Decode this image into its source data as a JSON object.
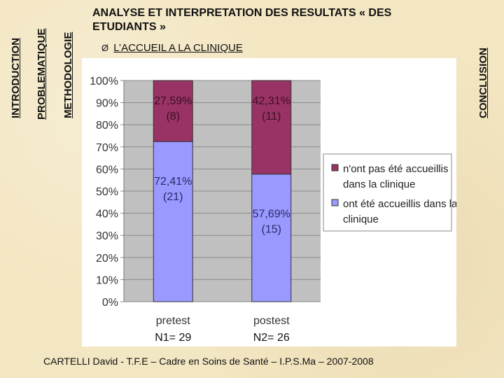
{
  "side_tabs": {
    "introduction": "INTRODUCTION",
    "problematique": "PROBLEMATIQUE",
    "methodologie": "METHODOLOGIE",
    "conclusion": "CONCLUSION"
  },
  "title": "ANALYSE ET INTERPRETATION DES RESULTATS « DES ETUDIANTS »",
  "subtitle": {
    "arrow": "Ø",
    "text": "L’ACCUEIL A LA CLINIQUE"
  },
  "chart_data": {
    "type": "bar",
    "stacked": true,
    "categories": [
      "pretest",
      "postest"
    ],
    "category_notes": [
      "N1= 29",
      "N2= 26"
    ],
    "series": [
      {
        "name": "ont été accueillis dans la clinique",
        "values": [
          72.41,
          57.69
        ],
        "labels": [
          [
            "72,41%",
            "(21)"
          ],
          [
            "57,69%",
            "(15)"
          ]
        ],
        "color": "#9999ff"
      },
      {
        "name": "n'ont pas été accueillis dans la clinique",
        "values": [
          27.59,
          42.31
        ],
        "labels": [
          [
            "27,59%",
            "(8)"
          ],
          [
            "42,31%",
            "(11)"
          ]
        ],
        "color": "#993366"
      }
    ],
    "ylim": [
      0,
      100
    ],
    "yticks": [
      "0%",
      "10%",
      "20%",
      "30%",
      "40%",
      "50%",
      "60%",
      "70%",
      "80%",
      "90%",
      "100%"
    ],
    "plot_background": "#c0c0c0",
    "grid": true,
    "legend_position": "right",
    "legend": [
      "n'ont pas été accueillis dans la clinique",
      "ont été accueillis dans la clinique"
    ]
  },
  "footer": "CARTELLI David - T.F.E – Cadre en Soins de Santé – I.P.S.Ma – 2007-2008"
}
